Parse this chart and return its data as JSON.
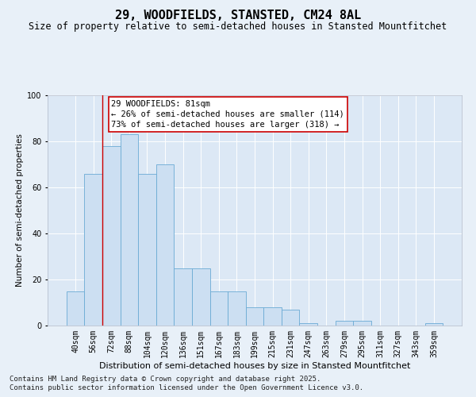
{
  "title": "29, WOODFIELDS, STANSTED, CM24 8AL",
  "subtitle": "Size of property relative to semi-detached houses in Stansted Mountfitchet",
  "xlabel": "Distribution of semi-detached houses by size in Stansted Mountfitchet",
  "ylabel": "Number of semi-detached properties",
  "bar_color": "#ccdff2",
  "bar_edge_color": "#6aaad4",
  "background_color": "#dce8f5",
  "grid_color": "#ffffff",
  "categories": [
    "40sqm",
    "56sqm",
    "72sqm",
    "88sqm",
    "104sqm",
    "120sqm",
    "136sqm",
    "151sqm",
    "167sqm",
    "183sqm",
    "199sqm",
    "215sqm",
    "231sqm",
    "247sqm",
    "263sqm",
    "279sqm",
    "295sqm",
    "311sqm",
    "327sqm",
    "343sqm",
    "359sqm"
  ],
  "values": [
    15,
    66,
    78,
    83,
    66,
    70,
    25,
    25,
    15,
    15,
    8,
    8,
    7,
    1,
    0,
    2,
    2,
    0,
    0,
    0,
    1
  ],
  "red_line_x": 1.5,
  "annotation_title": "29 WOODFIELDS: 81sqm",
  "annotation_line1": "← 26% of semi-detached houses are smaller (114)",
  "annotation_line2": "73% of semi-detached houses are larger (318) →",
  "footnote1": "Contains HM Land Registry data © Crown copyright and database right 2025.",
  "footnote2": "Contains public sector information licensed under the Open Government Licence v3.0.",
  "ylim": [
    0,
    100
  ],
  "title_fontsize": 11,
  "subtitle_fontsize": 8.5,
  "xlabel_fontsize": 8,
  "ylabel_fontsize": 7.5,
  "tick_fontsize": 7,
  "annotation_fontsize": 7.5,
  "footnote_fontsize": 6.5
}
